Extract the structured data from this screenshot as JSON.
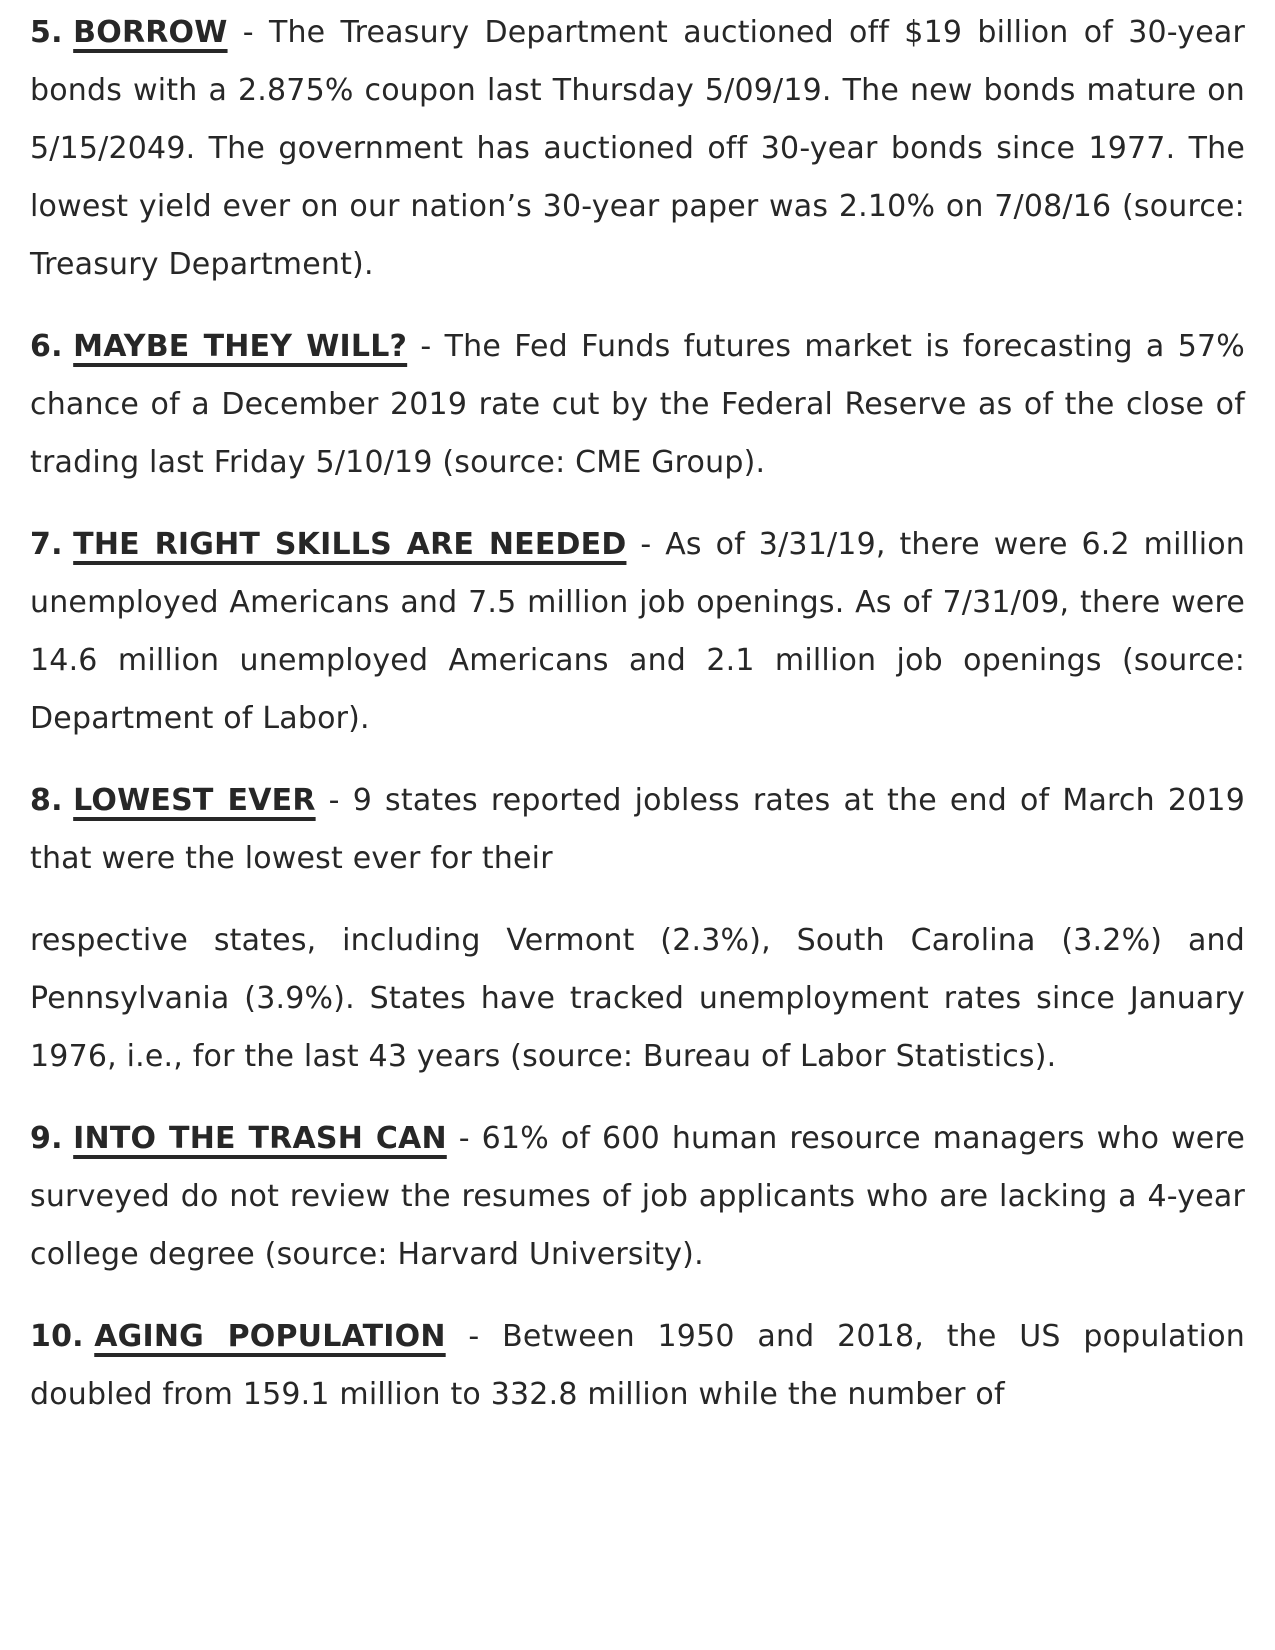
{
  "document": {
    "type": "financial-newsletter-page",
    "text_color": "#272727",
    "background_color": "#ffffff",
    "items": [
      {
        "number": "5.",
        "heading": "BORROW",
        "body": " - The Treasury Department auctioned off $19 billion of 30-year bonds with a 2.875% coupon last Thursday 5/09/19. The new bonds mature on 5/15/2049. The government has auctioned off 30-year bonds since 1977. The lowest yield ever on our nation’s 30-year paper was 2.10% on 7/08/16 (source: Treasury Department)."
      },
      {
        "number": "6.",
        "heading": "MAYBE THEY WILL?",
        "body": " - The Fed Funds futures market is forecasting a 57% chance of a December 2019 rate cut by the Federal Reserve as of the close of trading last Friday 5/10/19 (source: CME Group)."
      },
      {
        "number": "7.",
        "heading": "THE RIGHT SKILLS ARE NEEDED",
        "body": " - As of 3/31/19, there were 6.2 million unemployed Americans and 7.5 million job openings. As of 7/31/09, there were 14.6 million unemployed Americans and 2.1 million job openings (source: Department of Labor)."
      },
      {
        "number": "8.",
        "heading": "LOWEST EVER",
        "body": " - 9 states reported jobless rates at the end of March 2019 that were the lowest ever for their",
        "continuation": "respective states, including Vermont (2.3%), South Carolina (3.2%) and Pennsylvania (3.9%). States have tracked unemployment rates since January 1976, i.e., for the last 43 years (source: Bureau of Labor Statistics)."
      },
      {
        "number": "9.",
        "heading": "INTO THE TRASH CAN",
        "body": " - 61% of 600 human resource managers who were surveyed do not review the resumes of job applicants who are lacking a 4-year college degree (source: Harvard University)."
      },
      {
        "number": "10.",
        "heading": "AGING POPULATION",
        "body": " - Between 1950 and 2018, the US population doubled from 159.1 million to 332.8 million while the number of"
      }
    ]
  }
}
